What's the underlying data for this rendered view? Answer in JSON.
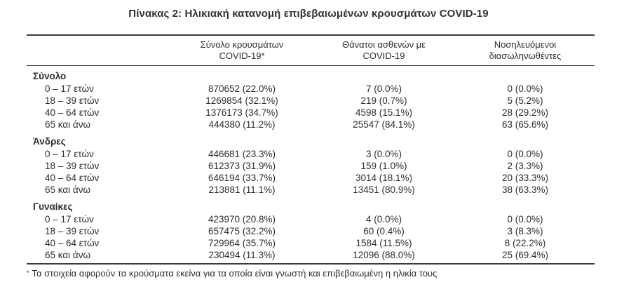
{
  "title": "Πίνακας 2: Ηλικιακή κατανομή επιβεβαιωμένων κρουσμάτων COVID-19",
  "colors": {
    "text": "#2d2d2d",
    "rule": "#3b3b3b",
    "background": "#ffffff"
  },
  "table": {
    "columns": [
      {
        "line1": "Σύνολο κρουσμάτων",
        "line2": "COVID-19*"
      },
      {
        "line1": "Θάνατοι ασθενών με",
        "line2": "COVID-19"
      },
      {
        "line1": "Νοσηλευόμενοι",
        "line2": "διασωληνωθέντες"
      }
    ],
    "sections": [
      {
        "name": "Σύνολο",
        "rows": [
          {
            "label": "0 – 17 ετών",
            "cases": "870652 (22.0%)",
            "deaths": "7 (0.0%)",
            "intubated": "0 (0.0%)"
          },
          {
            "label": "18 – 39 ετών",
            "cases": "1269854 (32.1%)",
            "deaths": "219 (0.7%)",
            "intubated": "5 (5.2%)"
          },
          {
            "label": "40 – 64 ετών",
            "cases": "1376173 (34.7%)",
            "deaths": "4598 (15.1%)",
            "intubated": "28 (29.2%)"
          },
          {
            "label": "65 και άνω",
            "cases": "444380 (11.2%)",
            "deaths": "25547 (84.1%)",
            "intubated": "63 (65.6%)"
          }
        ]
      },
      {
        "name": "Άνδρες",
        "rows": [
          {
            "label": "0 – 17 ετών",
            "cases": "446681 (23.3%)",
            "deaths": "3 (0.0%)",
            "intubated": "0 (0.0%)"
          },
          {
            "label": "18 – 39 ετών",
            "cases": "612373 (31.9%)",
            "deaths": "159 (1.0%)",
            "intubated": "2 (3.3%)"
          },
          {
            "label": "40 – 64 ετών",
            "cases": "646194 (33.7%)",
            "deaths": "3014 (18.1%)",
            "intubated": "20 (33.3%)"
          },
          {
            "label": "65 και άνω",
            "cases": "213881 (11.1%)",
            "deaths": "13451 (80.9%)",
            "intubated": "38 (63.3%)"
          }
        ]
      },
      {
        "name": "Γυναίκες",
        "rows": [
          {
            "label": "0 – 17 ετών",
            "cases": "423970 (20.8%)",
            "deaths": "4 (0.0%)",
            "intubated": "0 (0.0%)"
          },
          {
            "label": "18 – 39 ετών",
            "cases": "657475 (32.2%)",
            "deaths": "60 (0.4%)",
            "intubated": "3 (8.3%)"
          },
          {
            "label": "40 – 64 ετών",
            "cases": "729964 (35.7%)",
            "deaths": "1584 (11.5%)",
            "intubated": "8 (22.2%)"
          },
          {
            "label": "65 και άνω",
            "cases": "230494 (11.3%)",
            "deaths": "12096 (88.0%)",
            "intubated": "25 (69.4%)"
          }
        ]
      }
    ]
  },
  "footnote": {
    "marker": "*",
    "text": "Τα στοιχεία αφορούν τα κρούσματα εκείνα για τα οποία είναι γνωστή και επιβεβαιωμένη η ηλικία τους"
  }
}
